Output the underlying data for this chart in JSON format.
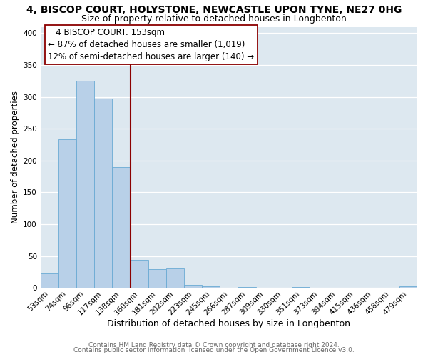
{
  "title": "4, BISCOP COURT, HOLYSTONE, NEWCASTLE UPON TYNE, NE27 0HG",
  "subtitle": "Size of property relative to detached houses in Longbenton",
  "xlabel": "Distribution of detached houses by size in Longbenton",
  "ylabel": "Number of detached properties",
  "footer1": "Contains HM Land Registry data © Crown copyright and database right 2024.",
  "footer2": "Contains public sector information licensed under the Open Government Licence v3.0.",
  "bar_labels": [
    "53sqm",
    "74sqm",
    "96sqm",
    "117sqm",
    "138sqm",
    "160sqm",
    "181sqm",
    "202sqm",
    "223sqm",
    "245sqm",
    "266sqm",
    "287sqm",
    "309sqm",
    "330sqm",
    "351sqm",
    "373sqm",
    "394sqm",
    "415sqm",
    "436sqm",
    "458sqm",
    "479sqm"
  ],
  "bar_values": [
    23,
    233,
    325,
    297,
    190,
    44,
    29,
    30,
    5,
    3,
    0,
    1,
    0,
    0,
    1,
    0,
    0,
    0,
    0,
    0,
    3
  ],
  "bar_color": "#b8d0e8",
  "bar_edge_color": "#6aaad4",
  "marker_color": "#8b0000",
  "marker_bin": 5,
  "annotation_title": "4 BISCOP COURT: 153sqm",
  "annotation_line1": "← 87% of detached houses are smaller (1,019)",
  "annotation_line2": "12% of semi-detached houses are larger (140) →",
  "annotation_box_color": "#ffffff",
  "annotation_box_edge": "#8b0000",
  "ylim": [
    0,
    410
  ],
  "yticks": [
    0,
    50,
    100,
    150,
    200,
    250,
    300,
    350,
    400
  ],
  "bg_color": "#dde8f0",
  "plot_bg_color": "#dde8f0",
  "grid_color": "#ffffff",
  "title_fontsize": 10,
  "subtitle_fontsize": 9,
  "xlabel_fontsize": 9,
  "ylabel_fontsize": 8.5,
  "tick_fontsize": 7.5,
  "footer_fontsize": 6.5
}
